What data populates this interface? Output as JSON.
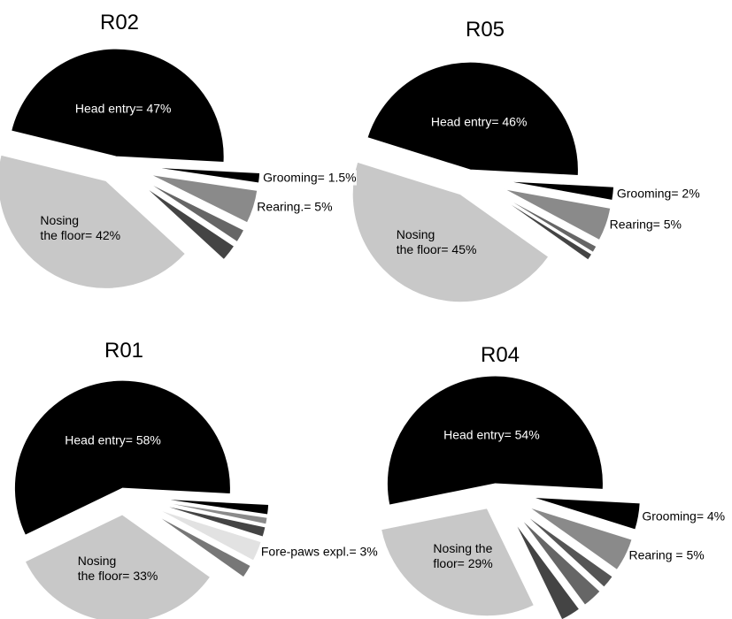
{
  "chart_data": [
    {
      "type": "pie",
      "title": "R02",
      "values": [
        47,
        42,
        2.5,
        2,
        5,
        1.5
      ],
      "value_labels": [
        "Head entry= 47%",
        "Nosing\nthe floor= 42%",
        null,
        null,
        "Rearing.= 5%",
        "Grooming= 1.5%"
      ],
      "colors": [
        "#000000",
        "#c8c8c8",
        "#444444",
        "#666666",
        "#8a8a8a",
        "#000000"
      ]
    },
    {
      "type": "pie",
      "title": "R05",
      "values": [
        46,
        45,
        1,
        1,
        5,
        2
      ],
      "value_labels": [
        "Head entry= 46%",
        "Nosing\nthe floor= 45%",
        null,
        null,
        "Rearing= 5%",
        "Grooming= 2%"
      ],
      "colors": [
        "#000000",
        "#c8c8c8",
        "#444444",
        "#666666",
        "#8a8a8a",
        "#000000"
      ]
    },
    {
      "type": "pie",
      "title": "R01",
      "values": [
        58,
        33,
        2,
        3,
        1.5,
        1,
        1.5
      ],
      "value_labels": [
        "Head entry= 58%",
        "Nosing\nthe floor= 33%",
        null,
        "Fore-paws expl.= 3%",
        null,
        null,
        null
      ],
      "colors": [
        "#000000",
        "#c8c8c8",
        "#777777",
        "#e2e2e2",
        "#444444",
        "#8a8a8a",
        "#000000"
      ]
    },
    {
      "type": "pie",
      "title": "R04",
      "values": [
        54,
        29,
        3,
        3,
        2,
        5,
        4
      ],
      "value_labels": [
        "Head entry= 54%",
        "Nosing the\nfloor= 29%",
        null,
        null,
        null,
        "Rearing = 5%",
        "Grooming= 4%"
      ],
      "colors": [
        "#000000",
        "#c8c8c8",
        "#444444",
        "#666666",
        "#555555",
        "#8a8a8a",
        "#000000"
      ]
    }
  ]
}
